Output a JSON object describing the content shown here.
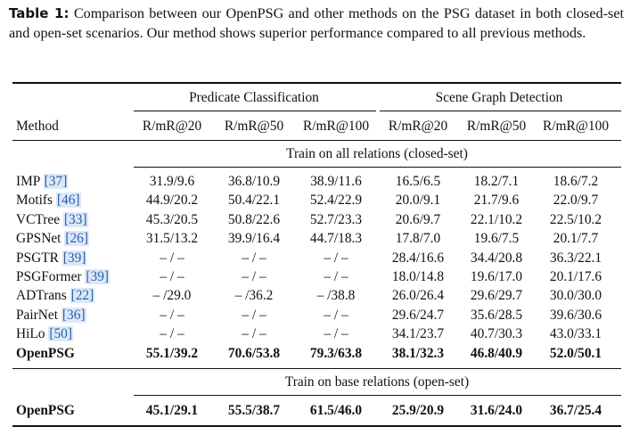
{
  "caption": {
    "label": "Table 1:",
    "text": "Comparison between our OpenPSG and other methods on the PSG dataset in both closed-set and open-set scenarios. Our method shows superior performance compared to all previous methods."
  },
  "table": {
    "group_headers": [
      "Predicate Classification",
      "Scene Graph Detection"
    ],
    "columns": [
      "Method",
      "R/mR@20",
      "R/mR@50",
      "R/mR@100",
      "R/mR@20",
      "R/mR@50",
      "R/mR@100"
    ],
    "sections": [
      {
        "title": "Train on all relations (closed-set)",
        "rows": [
          {
            "method": "IMP",
            "cite": "[37]",
            "cells": [
              "31.9/9.6",
              "36.8/10.9",
              "38.9/11.6",
              "16.5/6.5",
              "18.2/7.1",
              "18.6/7.2"
            ]
          },
          {
            "method": "Motifs",
            "cite": "[46]",
            "cells": [
              "44.9/20.2",
              "50.4/22.1",
              "52.4/22.9",
              "20.0/9.1",
              "21.7/9.6",
              "22.0/9.7"
            ]
          },
          {
            "method": "VCTree",
            "cite": "[33]",
            "cells": [
              "45.3/20.5",
              "50.8/22.6",
              "52.7/23.3",
              "20.6/9.7",
              "22.1/10.2",
              "22.5/10.2"
            ]
          },
          {
            "method": "GPSNet",
            "cite": "[26]",
            "cells": [
              "31.5/13.2",
              "39.9/16.4",
              "44.7/18.3",
              "17.8/7.0",
              "19.6/7.5",
              "20.1/7.7"
            ]
          },
          {
            "method": "PSGTR",
            "cite": "[39]",
            "cells": [
              "– / –",
              "– / –",
              "– / –",
              "28.4/16.6",
              "34.4/20.8",
              "36.3/22.1"
            ]
          },
          {
            "method": "PSGFormer",
            "cite": "[39]",
            "cells": [
              "– / –",
              "– / –",
              "– / –",
              "18.0/14.8",
              "19.6/17.0",
              "20.1/17.6"
            ]
          },
          {
            "method": "ADTrans",
            "cite": "[22]",
            "cells": [
              "– /29.0",
              "– /36.2",
              "– /38.8",
              "26.0/26.4",
              "29.6/29.7",
              "30.0/30.0"
            ]
          },
          {
            "method": "PairNet",
            "cite": "[36]",
            "cells": [
              "– / –",
              "– / –",
              "– / –",
              "29.6/24.7",
              "35.6/28.5",
              "39.6/30.6"
            ]
          },
          {
            "method": "HiLo",
            "cite": "[50]",
            "cells": [
              "– / –",
              "– / –",
              "– / –",
              "34.1/23.7",
              "40.7/30.3",
              "43.0/33.1"
            ]
          },
          {
            "method": "OpenPSG",
            "bold": true,
            "cells": [
              "55.1/39.2",
              "70.6/53.8",
              "79.3/63.8",
              "38.1/32.3",
              "46.8/40.9",
              "52.0/50.1"
            ]
          }
        ]
      },
      {
        "title": "Train on base relations (open-set)",
        "rows": [
          {
            "method": "OpenPSG",
            "bold": true,
            "cells": [
              "45.1/29.1",
              "55.5/38.7",
              "61.5/46.0",
              "25.9/20.9",
              "31.6/24.0",
              "36.7/25.4"
            ]
          }
        ]
      }
    ]
  }
}
